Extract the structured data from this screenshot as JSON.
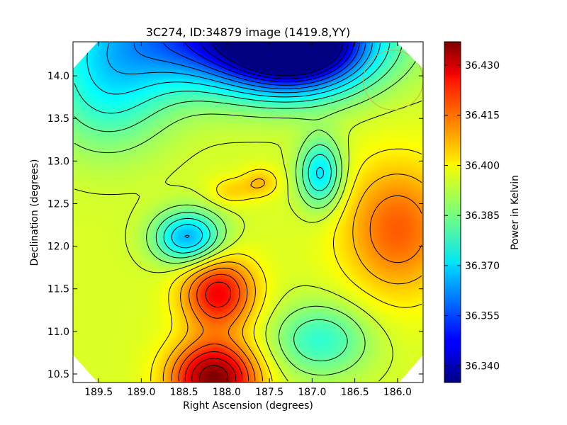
{
  "chart_data": {
    "type": "heatmap",
    "title": "3C274, ID:34879 image (1419.8,YY)",
    "xlabel": "Right Ascension (degrees)",
    "ylabel": "Declination (degrees)",
    "colorbar_label": "Power in Kelvin",
    "xlim": [
      189.8,
      185.7
    ],
    "ylim": [
      10.4,
      14.4
    ],
    "x_ticks": [
      189.5,
      189.0,
      188.5,
      188.0,
      187.5,
      187.0,
      186.5,
      186.0
    ],
    "x_tick_labels": [
      "189.5",
      "189.0",
      "188.5",
      "188.0",
      "187.5",
      "187.0",
      "186.5",
      "186.0"
    ],
    "y_ticks": [
      10.5,
      11.0,
      11.5,
      12.0,
      12.5,
      13.0,
      13.5,
      14.0
    ],
    "y_tick_labels": [
      "10.5",
      "11.0",
      "11.5",
      "12.0",
      "12.5",
      "13.0",
      "13.5",
      "14.0"
    ],
    "colorbar_range": [
      36.335,
      36.437
    ],
    "colorbar_ticks": [
      36.34,
      36.355,
      36.37,
      36.385,
      36.4,
      36.415,
      36.43
    ],
    "colorbar_tick_labels": [
      "36.340",
      "36.355",
      "36.370",
      "36.385",
      "36.400",
      "36.415",
      "36.430"
    ],
    "colormap": "jet",
    "contours": true,
    "background_level": 36.395,
    "features": [
      {
        "kind": "minimum",
        "ra": 187.2,
        "dec": 14.35,
        "value": 36.335,
        "sigma_ra": 0.55,
        "sigma_dec": 0.35
      },
      {
        "kind": "minimum",
        "ra": 188.0,
        "dec": 14.5,
        "value": 36.35,
        "sigma_ra": 1.1,
        "sigma_dec": 0.45
      },
      {
        "kind": "minimum",
        "ra": 188.45,
        "dec": 12.1,
        "value": 36.365,
        "sigma_ra": 0.28,
        "sigma_dec": 0.22
      },
      {
        "kind": "minimum",
        "ra": 186.9,
        "dec": 12.85,
        "value": 36.37,
        "sigma_ra": 0.18,
        "sigma_dec": 0.28
      },
      {
        "kind": "minimum",
        "ra": 186.9,
        "dec": 10.9,
        "value": 36.378,
        "sigma_ra": 0.4,
        "sigma_dec": 0.3
      },
      {
        "kind": "minimum",
        "ra": 189.4,
        "dec": 13.8,
        "value": 36.378,
        "sigma_ra": 0.5,
        "sigma_dec": 0.5
      },
      {
        "kind": "maximum",
        "ra": 188.15,
        "dec": 10.45,
        "value": 36.437,
        "sigma_ra": 0.35,
        "sigma_dec": 0.3
      },
      {
        "kind": "maximum",
        "ra": 188.1,
        "dec": 11.45,
        "value": 36.425,
        "sigma_ra": 0.3,
        "sigma_dec": 0.3
      },
      {
        "kind": "maximum",
        "ra": 186.0,
        "dec": 12.2,
        "value": 36.415,
        "sigma_ra": 0.45,
        "sigma_dec": 0.55
      },
      {
        "kind": "maximum",
        "ra": 187.6,
        "dec": 12.75,
        "value": 36.405,
        "sigma_ra": 0.15,
        "sigma_dec": 0.12
      },
      {
        "kind": "maximum",
        "ra": 187.95,
        "dec": 12.65,
        "value": 36.403,
        "sigma_ra": 0.18,
        "sigma_dec": 0.12
      }
    ],
    "beam_circle": {
      "ra": 186.05,
      "dec": 13.95,
      "radius_deg": 0.35,
      "color": "#c8b040"
    },
    "masked_corners": true
  }
}
